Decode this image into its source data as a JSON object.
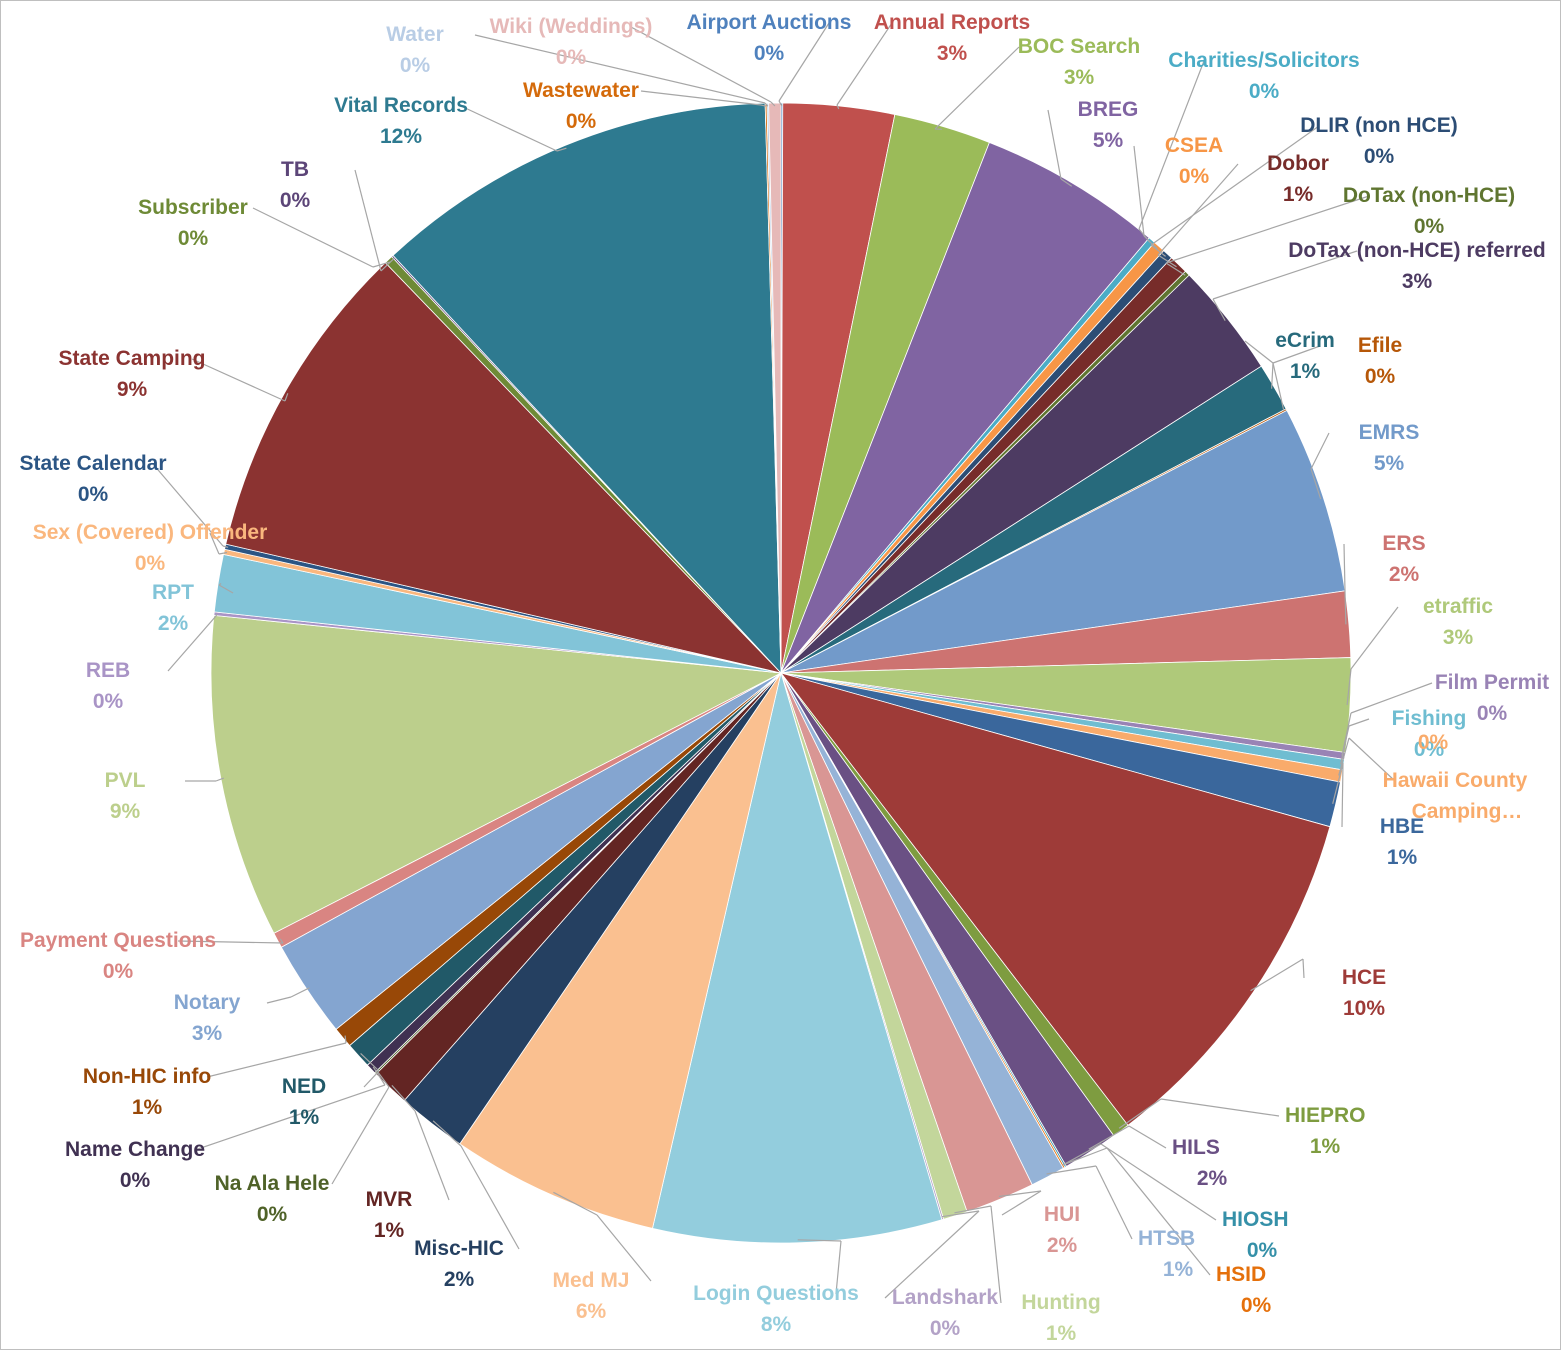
{
  "chart_data": {
    "type": "pie",
    "title": "",
    "start_angle_deg": 0,
    "direction": "clockwise",
    "data_label_format": "name and percent",
    "slices": [
      {
        "name": "Airport Auctions",
        "pct_label": "0%",
        "value": 0.05,
        "color": "#4f81bd"
      },
      {
        "name": "Annual Reports",
        "pct_label": "3%",
        "value": 3.2,
        "color": "#c0504d"
      },
      {
        "name": "BOC Search",
        "pct_label": "3%",
        "value": 2.8,
        "color": "#9bbb59"
      },
      {
        "name": "BREG",
        "pct_label": "5%",
        "value": 5.3,
        "color": "#8064a2"
      },
      {
        "name": "Charities/Solicitors",
        "pct_label": "0%",
        "value": 0.2,
        "color": "#4bacc6"
      },
      {
        "name": "CSEA",
        "pct_label": "0%",
        "value": 0.35,
        "color": "#f79646"
      },
      {
        "name": "DLIR (non HCE)",
        "pct_label": "0%",
        "value": 0.3,
        "color": "#2c4d75"
      },
      {
        "name": "Dobor",
        "pct_label": "1%",
        "value": 0.55,
        "color": "#772c2a"
      },
      {
        "name": "DoTax (non-HCE)",
        "pct_label": "0%",
        "value": 0.15,
        "color": "#5f7530"
      },
      {
        "name": "DoTax (non-HCE) referred",
        "pct_label": "3%",
        "value": 3.3,
        "color": "#4d3b62"
      },
      {
        "name": "eCrim",
        "pct_label": "1%",
        "value": 1.4,
        "color": "#276a7c"
      },
      {
        "name": "Efile",
        "pct_label": "0%",
        "value": 0.05,
        "color": "#b65708"
      },
      {
        "name": "EMRS",
        "pct_label": "5%",
        "value": 5.4,
        "color": "#729aca"
      },
      {
        "name": "ERS",
        "pct_label": "2%",
        "value": 1.9,
        "color": "#cd7371"
      },
      {
        "name": "etraffic",
        "pct_label": "3%",
        "value": 2.7,
        "color": "#afc97a"
      },
      {
        "name": "Film Permit",
        "pct_label": "0%",
        "value": 0.2,
        "color": "#9983b5"
      },
      {
        "name": "Fishing",
        "pct_label": "0%",
        "value": 0.3,
        "color": "#6fbdd1"
      },
      {
        "name": "Hawaii County Camping…",
        "pct_label": "0%",
        "value": 0.35,
        "color": "#f9ab6b"
      },
      {
        "name": "HBE",
        "pct_label": "1%",
        "value": 1.3,
        "color": "#3a679c"
      },
      {
        "name": "HCE",
        "pct_label": "10%",
        "value": 10.4,
        "color": "#9e3b38"
      },
      {
        "name": "HIEPRO",
        "pct_label": "1%",
        "value": 0.5,
        "color": "#7e9c40"
      },
      {
        "name": "HILS",
        "pct_label": "2%",
        "value": 1.6,
        "color": "#6a5084"
      },
      {
        "name": "HIOSH",
        "pct_label": "0%",
        "value": 0.05,
        "color": "#3590a8"
      },
      {
        "name": "HSID",
        "pct_label": "0%",
        "value": 0.05,
        "color": "#e5700b"
      },
      {
        "name": "HTSB",
        "pct_label": "1%",
        "value": 1.0,
        "color": "#95b3d7"
      },
      {
        "name": "HUI",
        "pct_label": "2%",
        "value": 2.0,
        "color": "#d99694"
      },
      {
        "name": "Hunting",
        "pct_label": "1%",
        "value": 0.7,
        "color": "#c3d69b"
      },
      {
        "name": "Landshark",
        "pct_label": "0%",
        "value": 0.05,
        "color": "#b3a2c7"
      },
      {
        "name": "Login Questions",
        "pct_label": "8%",
        "value": 8.3,
        "color": "#93cddd"
      },
      {
        "name": "Med MJ",
        "pct_label": "6%",
        "value": 6.0,
        "color": "#fac090"
      },
      {
        "name": "Misc-HIC",
        "pct_label": "2%",
        "value": 2.0,
        "color": "#254061"
      },
      {
        "name": "MVR",
        "pct_label": "1%",
        "value": 1.1,
        "color": "#632523"
      },
      {
        "name": "Na Ala Hele",
        "pct_label": "0%",
        "value": 0.05,
        "color": "#4f6228"
      },
      {
        "name": "Name Change",
        "pct_label": "0%",
        "value": 0.3,
        "color": "#403152"
      },
      {
        "name": "NED",
        "pct_label": "1%",
        "value": 0.75,
        "color": "#215968"
      },
      {
        "name": "Non-HIC info",
        "pct_label": "1%",
        "value": 0.6,
        "color": "#984807"
      },
      {
        "name": "Notary",
        "pct_label": "3%",
        "value": 2.8,
        "color": "#84a5d0"
      },
      {
        "name": "Payment Questions",
        "pct_label": "0%",
        "value": 0.45,
        "color": "#d98582"
      },
      {
        "name": "PVL",
        "pct_label": "9%",
        "value": 9.3,
        "color": "#bccf8c"
      },
      {
        "name": "REB",
        "pct_label": "0%",
        "value": 0.1,
        "color": "#a994c6"
      },
      {
        "name": "RPT",
        "pct_label": "2%",
        "value": 1.65,
        "color": "#82c4d8"
      },
      {
        "name": "Sex (Covered) Offender",
        "pct_label": "0%",
        "value": 0.15,
        "color": "#fab77e"
      },
      {
        "name": "State Calendar",
        "pct_label": "0%",
        "value": 0.15,
        "color": "#2b5584"
      },
      {
        "name": "State Camping",
        "pct_label": "9%",
        "value": 9.3,
        "color": "#8b3331"
      },
      {
        "name": "Subscriber",
        "pct_label": "0%",
        "value": 0.25,
        "color": "#6e8a36"
      },
      {
        "name": "TB",
        "pct_label": "0%",
        "value": 0.05,
        "color": "#5c4578"
      },
      {
        "name": "Vital Records",
        "pct_label": "12%",
        "value": 11.65,
        "color": "#2e7a90"
      },
      {
        "name": "Wastewater",
        "pct_label": "0%",
        "value": 0.05,
        "color": "#d46a0a"
      },
      {
        "name": "Water",
        "pct_label": "0%",
        "value": 0.05,
        "color": "#b9cde5"
      },
      {
        "name": "Wiki (Weddings)",
        "pct_label": "0%",
        "value": 0.35,
        "color": "#e6b9b8"
      }
    ]
  }
}
